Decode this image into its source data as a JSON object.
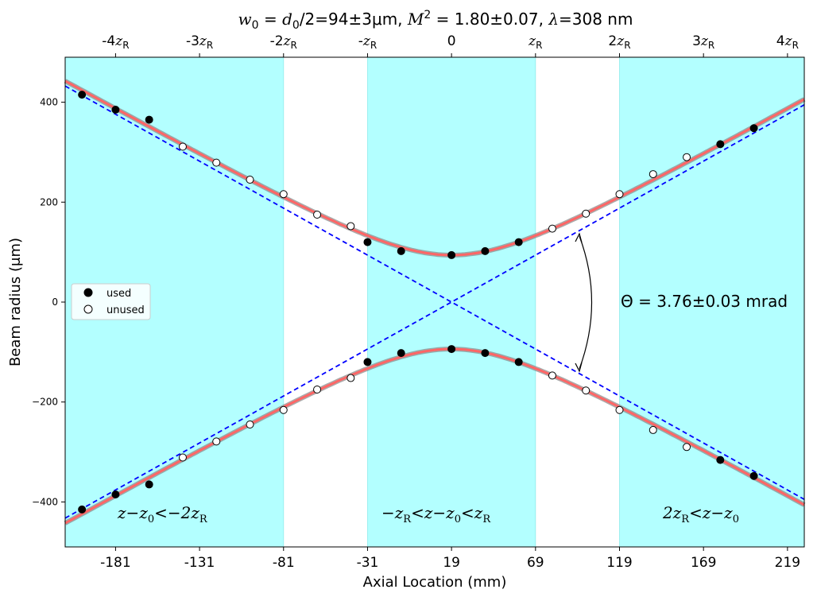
{
  "chart_data": {
    "type": "scatter",
    "title": {
      "w0": "0",
      "d0": "0",
      "rest": "/2=94±3μm,",
      "m2_label": "M",
      "m2_sup": "2",
      "m2_val": "= 1.80±0.07,",
      "lambda_label": "λ",
      "lambda_val": "=308 nm"
    },
    "xlabel": "Axial Location (mm)",
    "ylabel": "Beam radius (μm)",
    "xlim": [
      -211,
      229
    ],
    "ylim": [
      -490,
      490
    ],
    "x_ticks": [
      -181,
      -131,
      -81,
      -31,
      19,
      69,
      119,
      169,
      219
    ],
    "x_tick_labels": [
      "-181",
      "-131",
      "-81",
      "-31",
      "19",
      "69",
      "119",
      "169",
      "219"
    ],
    "y_ticks": [
      -400,
      -200,
      0,
      200,
      400
    ],
    "y_tick_labels": [
      "−400",
      "−200",
      "0",
      "200",
      "400"
    ],
    "top_ticks": [
      {
        "x": -181,
        "prefix": "-4",
        "sym": "z",
        "sub": "R"
      },
      {
        "x": -131,
        "prefix": "-3",
        "sym": "z",
        "sub": "R"
      },
      {
        "x": -81,
        "prefix": "-2",
        "sym": "z",
        "sub": "R"
      },
      {
        "x": -31,
        "prefix": "-",
        "sym": "z",
        "sub": "R"
      },
      {
        "x": 19,
        "prefix": "0",
        "sym": "",
        "sub": ""
      },
      {
        "x": 69,
        "prefix": "",
        "sym": "z",
        "sub": "R"
      },
      {
        "x": 119,
        "prefix": "2",
        "sym": "z",
        "sub": "R"
      },
      {
        "x": 169,
        "prefix": "3",
        "sym": "z",
        "sub": "R"
      },
      {
        "x": 219,
        "prefix": "4",
        "sym": "z",
        "sub": "R"
      }
    ],
    "shaded_regions": [
      [
        -211,
        -81
      ],
      [
        -31,
        69
      ],
      [
        119,
        229
      ]
    ],
    "shade_color": "#b3ffff",
    "fit": {
      "z0": 19,
      "w0": 94,
      "zR": 50,
      "color": "#ff6666"
    },
    "asymptote": {
      "slope": 1.88,
      "color": "#0000ff"
    },
    "legend": {
      "position": "center-left",
      "used_label": "used",
      "unused_label": "unused"
    },
    "series": [
      {
        "name": "used",
        "filled": true,
        "x": [
          -201,
          -181,
          -161,
          -31,
          -11,
          19,
          39,
          59,
          179,
          199
        ],
        "y": [
          415,
          385,
          365,
          120,
          102,
          94,
          102,
          120,
          316,
          348
        ]
      },
      {
        "name": "unused",
        "filled": false,
        "x": [
          -141,
          -121,
          -101,
          -81,
          -61,
          -41,
          79,
          99,
          119,
          139,
          159
        ],
        "y": [
          311,
          279,
          245,
          216,
          175,
          152,
          147,
          177,
          216,
          256,
          290
        ]
      }
    ],
    "annotations": {
      "divergence": "Θ  = 3.76±0.03 mrad",
      "region_left": {
        "a": "z",
        "b": "−",
        "c": "z",
        "c_sub": "0",
        "d": "<−",
        "e": "2z",
        "e_sub": "R"
      },
      "region_mid": {
        "a": "−z",
        "a_sub": "R",
        "b": "<",
        "c": "z",
        "d": "−",
        "e": "z",
        "e_sub": "0",
        "f": "<",
        "g": "z",
        "g_sub": "R"
      },
      "region_right": {
        "a": "2z",
        "a_sub": "R",
        "b": "<",
        "c": "z",
        "d": "−",
        "e": "z",
        "e_sub": "0"
      }
    }
  }
}
